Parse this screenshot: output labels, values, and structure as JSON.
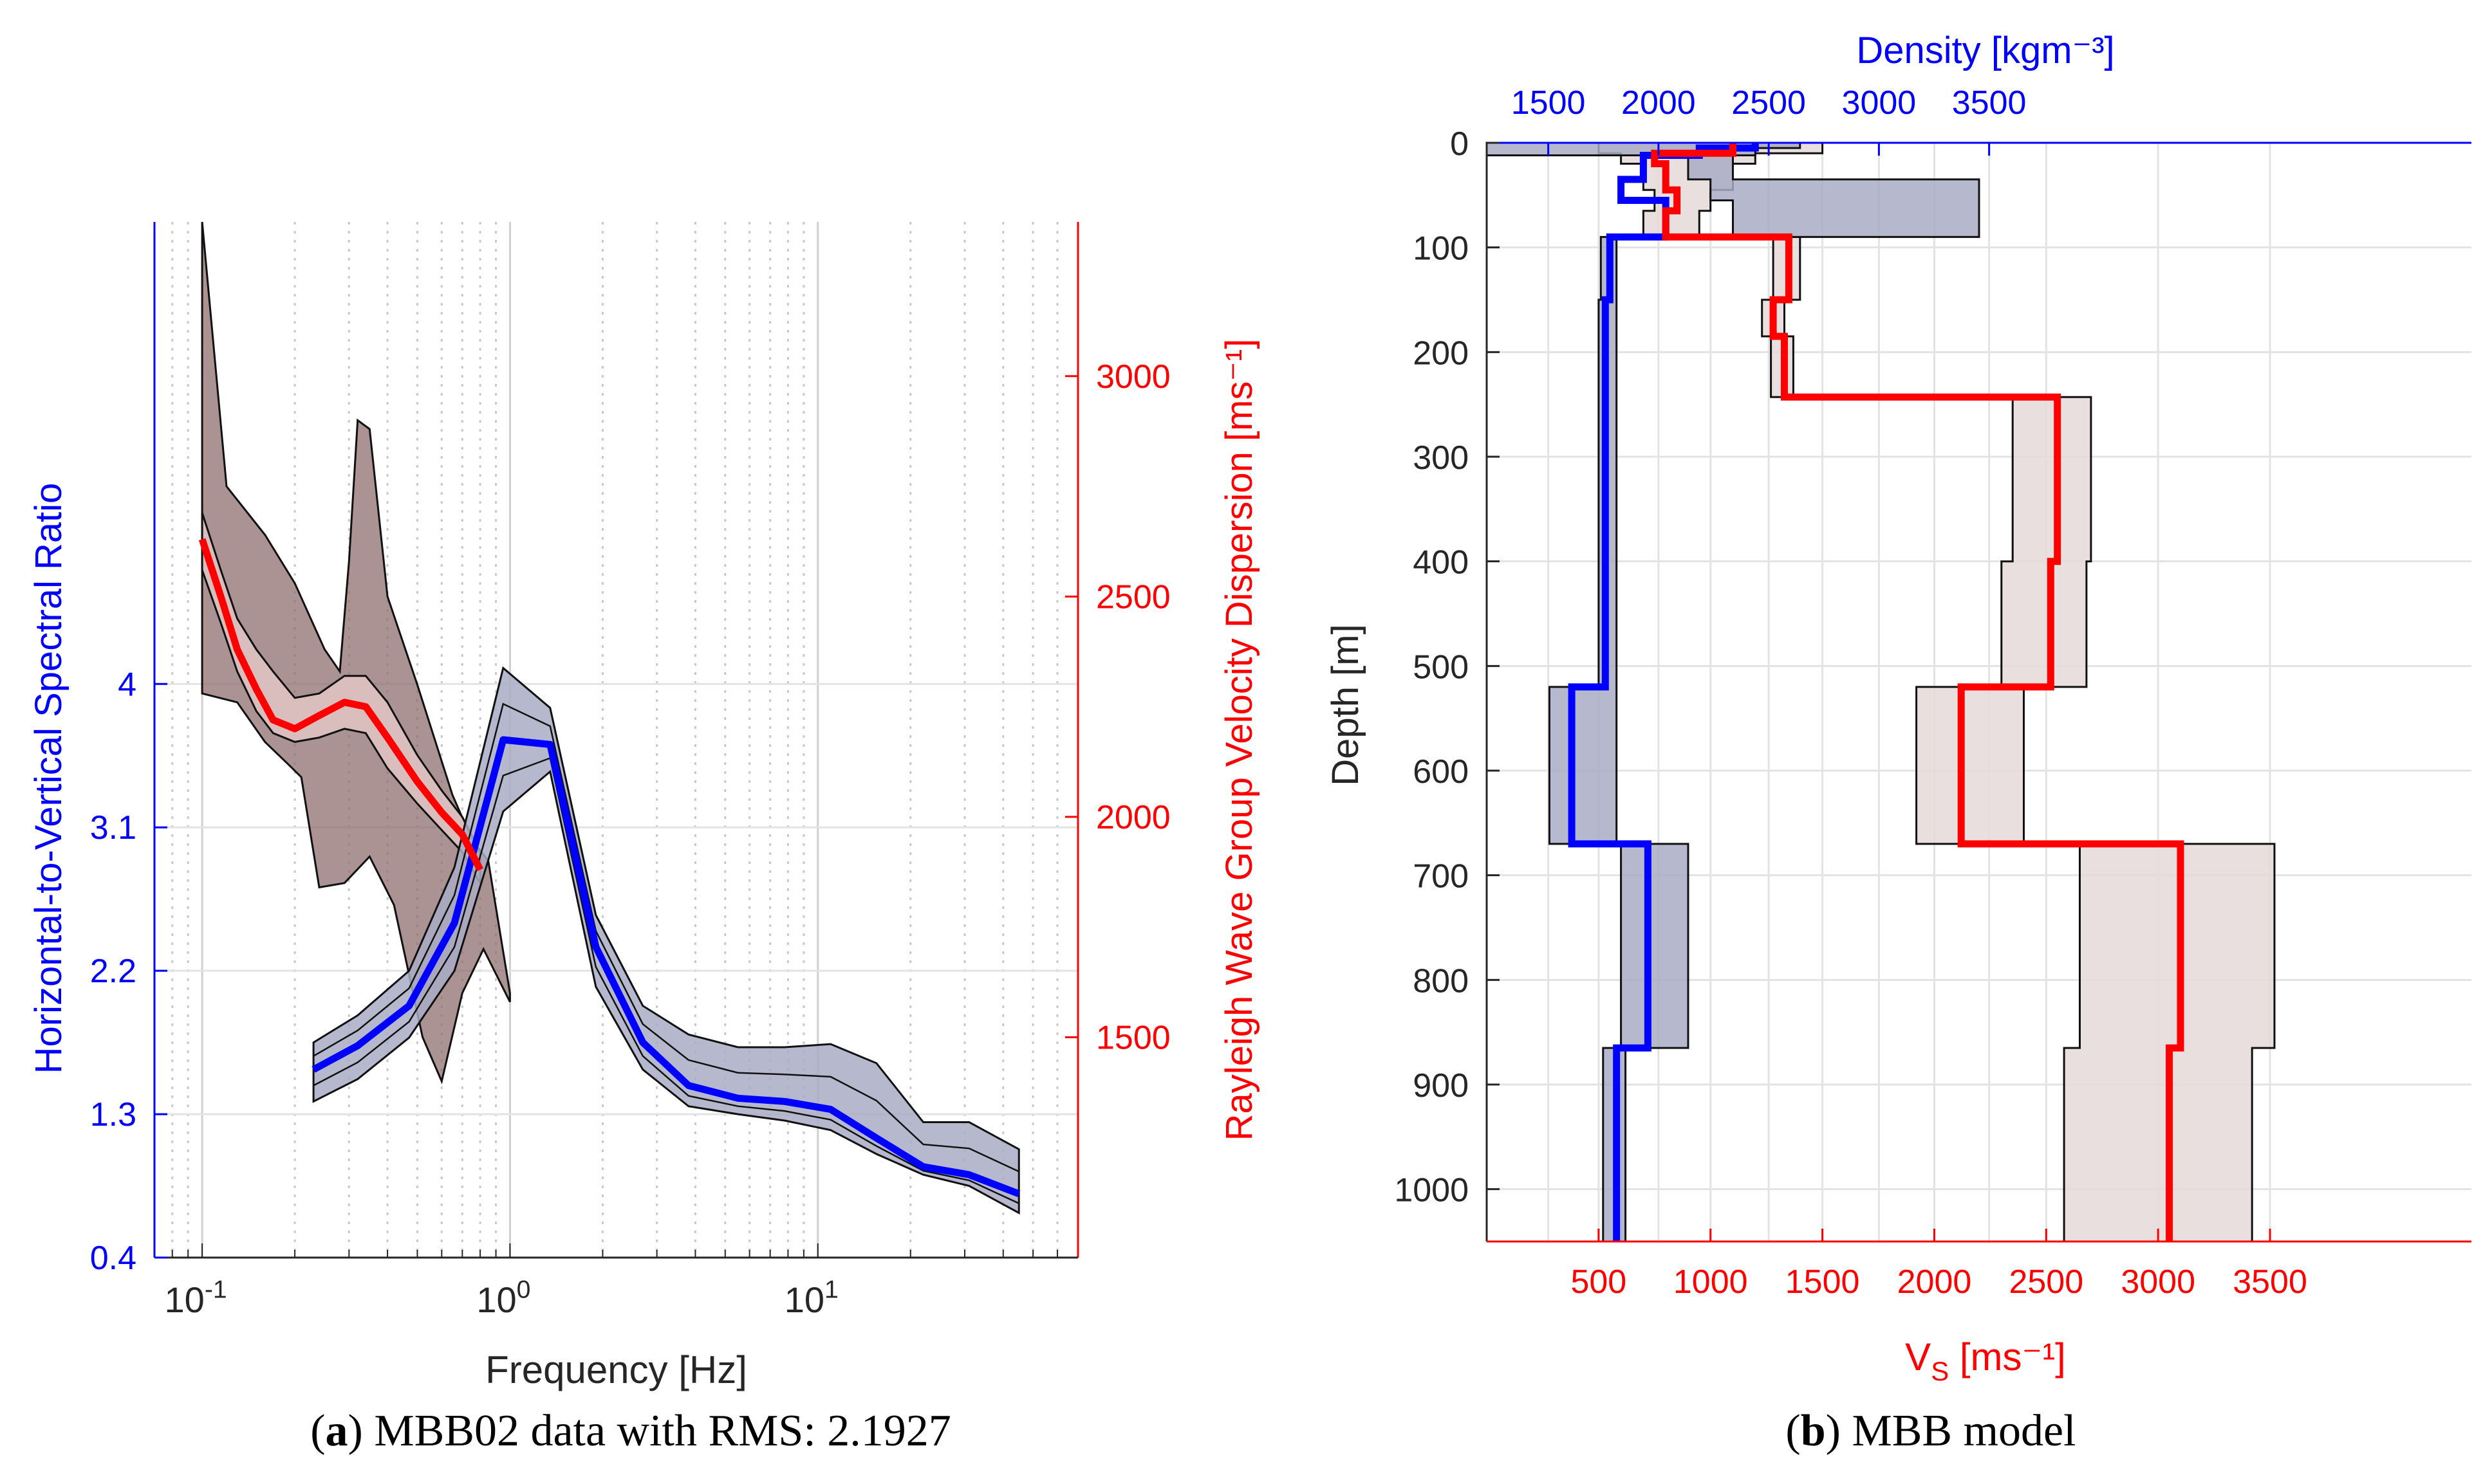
{
  "captions": {
    "a": {
      "letter": "a",
      "text": "MBB02 data with RMS: 2.1927"
    },
    "b": {
      "letter": "b",
      "text": "MBB model"
    }
  },
  "colors": {
    "blue": "#0000ff",
    "red": "#ff0000",
    "hv_band": "#a9acc6",
    "disp_band": "#8c6a6a",
    "disp_inner_band": "#e6c9c9",
    "vs_band": "#e5d9d9",
    "grid": "#e3e3e3"
  },
  "chart_data": [
    {
      "type": "line",
      "panel": "a",
      "xlabel": "Frequency [Hz]",
      "ylabel": "Horizontal-to-Vertical Spectral Ratio",
      "y2label": "Rayleigh Wave Group Velocity Dispersion [ms⁻¹]",
      "x_scale": "log",
      "xlim": [
        0.07,
        70
      ],
      "x_tick_labels": [
        {
          "value": 0.1,
          "base": "10",
          "exp": "-1"
        },
        {
          "value": 1,
          "base": "10",
          "exp": "0"
        },
        {
          "value": 10,
          "base": "10",
          "exp": "1"
        }
      ],
      "ylim": [
        0.4,
        6.9
      ],
      "y_ticks": [
        0.4,
        1.3,
        2.2,
        3.1,
        4
      ],
      "y_tick_labels": [
        "0.4",
        "1.3",
        "2.2",
        "3.1",
        "4"
      ],
      "y2lim": [
        1000,
        3350
      ],
      "y2_ticks": [
        1500,
        2000,
        2500,
        3000
      ],
      "grid": true,
      "series": [
        {
          "axis": "y",
          "role": "hv_mean",
          "x": [
            0.23,
            0.32,
            0.47,
            0.66,
            0.95,
            1.35,
            1.9,
            2.7,
            3.8,
            5.5,
            7.8,
            11,
            15.5,
            22,
            31,
            45
          ],
          "values": [
            1.58,
            1.73,
            1.98,
            2.5,
            3.65,
            3.62,
            2.35,
            1.75,
            1.48,
            1.4,
            1.38,
            1.33,
            1.15,
            0.97,
            0.92,
            0.8
          ],
          "upper": [
            1.75,
            1.92,
            2.2,
            2.85,
            4.1,
            3.85,
            2.55,
            1.98,
            1.8,
            1.72,
            1.72,
            1.74,
            1.62,
            1.25,
            1.25,
            1.08
          ],
          "lower": [
            1.38,
            1.52,
            1.78,
            2.2,
            3.2,
            3.45,
            2.1,
            1.58,
            1.35,
            1.3,
            1.26,
            1.2,
            1.05,
            0.92,
            0.85,
            0.68
          ]
        },
        {
          "axis": "y2",
          "role": "dispersion_mean",
          "x": [
            0.1,
            0.115,
            0.13,
            0.15,
            0.17,
            0.2,
            0.24,
            0.29,
            0.34,
            0.4,
            0.5,
            0.6,
            0.7,
            0.8
          ],
          "values": [
            2630,
            2500,
            2380,
            2290,
            2220,
            2200,
            2230,
            2260,
            2250,
            2180,
            2080,
            2010,
            1960,
            1880
          ],
          "upper": [
            2690,
            2560,
            2450,
            2380,
            2330,
            2270,
            2280,
            2320,
            2320,
            2260,
            2140,
            2060,
            2000,
            1920
          ],
          "lower": [
            2560,
            2440,
            2330,
            2240,
            2190,
            2170,
            2180,
            2200,
            2190,
            2110,
            2030,
            1970,
            1920,
            1850
          ],
          "outer_upper": [
            3350,
            2750,
            2640,
            2530,
            2380,
            2330,
            2580,
            2900,
            2880,
            2500,
            2300,
            2050,
            1950,
            1900,
            1600
          ],
          "outer_lower": [
            2280,
            2260,
            2170,
            2120,
            2090,
            1840,
            1850,
            1910,
            1800,
            1500,
            1400,
            1600,
            1700,
            1580
          ],
          "outer_x_upper": [
            0.1,
            0.12,
            0.16,
            0.2,
            0.25,
            0.28,
            0.3,
            0.32,
            0.35,
            0.4,
            0.5,
            0.65,
            0.75,
            0.85,
            1.0
          ],
          "outer_x_lower": [
            0.1,
            0.13,
            0.16,
            0.19,
            0.21,
            0.24,
            0.29,
            0.35,
            0.42,
            0.52,
            0.6,
            0.7,
            0.82,
            1.0
          ]
        }
      ]
    },
    {
      "type": "line",
      "panel": "b",
      "ylabel": "Depth [m]",
      "ylim": [
        0,
        1050
      ],
      "y_reversed": true,
      "y_ticks": [
        0,
        100,
        200,
        300,
        400,
        500,
        600,
        700,
        800,
        900,
        1000
      ],
      "top_axis_label": "Density [kgm⁻³]",
      "top_axis_ticks": [
        1500,
        2000,
        2500,
        3000,
        3500
      ],
      "bottom_axis_label": "VS [ms⁻¹]",
      "bottom_axis_ticks": [
        500,
        1000,
        1500,
        2000,
        2500,
        3000,
        3500
      ],
      "xlim_vs": [
        0,
        4400
      ],
      "grid": true,
      "series": [
        {
          "role": "density_profile",
          "depth": [
            0,
            5,
            5,
            12,
            12,
            35,
            35,
            55,
            55,
            90,
            90,
            150,
            150,
            520,
            520,
            670,
            670,
            865,
            865,
            1050
          ],
          "vs_units": [
            1200,
            1200,
            950,
            950,
            700,
            700,
            600,
            600,
            800,
            800,
            550,
            550,
            530,
            530,
            380,
            380,
            720,
            720,
            580,
            580
          ],
          "band_left": [
            0,
            0,
            0,
            0,
            900,
            900,
            1000,
            1000,
            1100,
            1100,
            510,
            510,
            500,
            500,
            280,
            280,
            600,
            600,
            520,
            520
          ],
          "band_right": [
            1400,
            1400,
            1200,
            1200,
            1100,
            1100,
            2200,
            2200,
            2200,
            2200,
            580,
            580,
            580,
            580,
            580,
            580,
            900,
            900,
            620,
            620
          ]
        },
        {
          "role": "vs_profile",
          "depth": [
            0,
            10,
            10,
            20,
            20,
            45,
            45,
            65,
            65,
            90,
            90,
            150,
            150,
            185,
            185,
            243,
            243,
            400,
            400,
            520,
            520,
            670,
            670,
            865,
            865,
            1050
          ],
          "vs": [
            1100,
            1100,
            750,
            750,
            800,
            800,
            850,
            850,
            800,
            800,
            1350,
            1350,
            1280,
            1280,
            1330,
            1330,
            2550,
            2550,
            2520,
            2520,
            2120,
            2120,
            3100,
            3100,
            3050,
            3050
          ],
          "band_left": [
            500,
            500,
            600,
            600,
            700,
            700,
            750,
            750,
            700,
            700,
            1280,
            1280,
            1230,
            1230,
            1270,
            1270,
            2350,
            2350,
            2300,
            2300,
            1920,
            1920,
            2650,
            2650,
            2580,
            2580
          ],
          "band_right": [
            1500,
            1500,
            1200,
            1200,
            1100,
            1100,
            1000,
            1000,
            950,
            950,
            1400,
            1400,
            1330,
            1330,
            1370,
            1370,
            2700,
            2700,
            2680,
            2680,
            2400,
            2400,
            3520,
            3520,
            3420,
            3420
          ]
        }
      ]
    }
  ]
}
